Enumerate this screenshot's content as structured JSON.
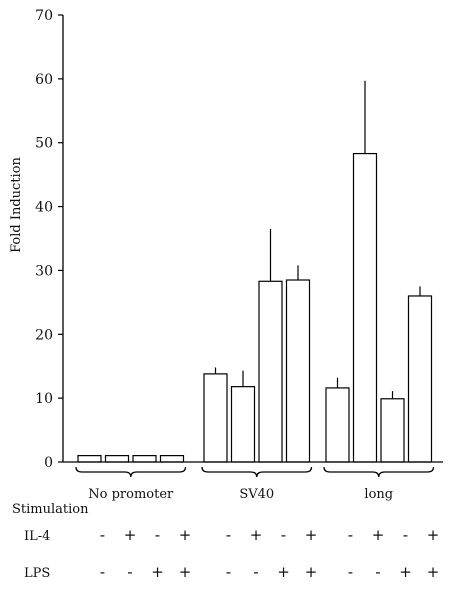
{
  "chart_data": {
    "type": "bar",
    "title": "",
    "xlabel": "",
    "ylabel": "Fold Induction",
    "ylim": [
      0,
      70
    ],
    "yticks": [
      0,
      10,
      20,
      30,
      40,
      50,
      60,
      70
    ],
    "grid": false,
    "bar_fill": "#ffffff",
    "bar_stroke": "#000000",
    "groups": [
      {
        "label": "No promoter",
        "values": [
          1.0,
          1.0,
          1.0,
          1.0
        ],
        "errors": [
          0,
          0,
          0,
          0
        ]
      },
      {
        "label": "SV40",
        "values": [
          13.8,
          11.8,
          28.3,
          28.5
        ],
        "errors": [
          1.0,
          2.5,
          8.2,
          2.3
        ]
      },
      {
        "label": "long",
        "values": [
          11.6,
          48.3,
          9.9,
          26.0
        ],
        "errors": [
          1.6,
          11.4,
          1.2,
          1.5
        ]
      }
    ],
    "conditions": {
      "title": "Stimulation",
      "rows": [
        {
          "label": "IL-4",
          "signs": [
            "-",
            "+",
            "-",
            "+",
            "-",
            "+",
            "-",
            "+",
            "-",
            "+",
            "-",
            "+"
          ]
        },
        {
          "label": "LPS",
          "signs": [
            "-",
            "-",
            "+",
            "+",
            "-",
            "-",
            "+",
            "+",
            "-",
            "-",
            "+",
            "+"
          ]
        }
      ]
    }
  }
}
